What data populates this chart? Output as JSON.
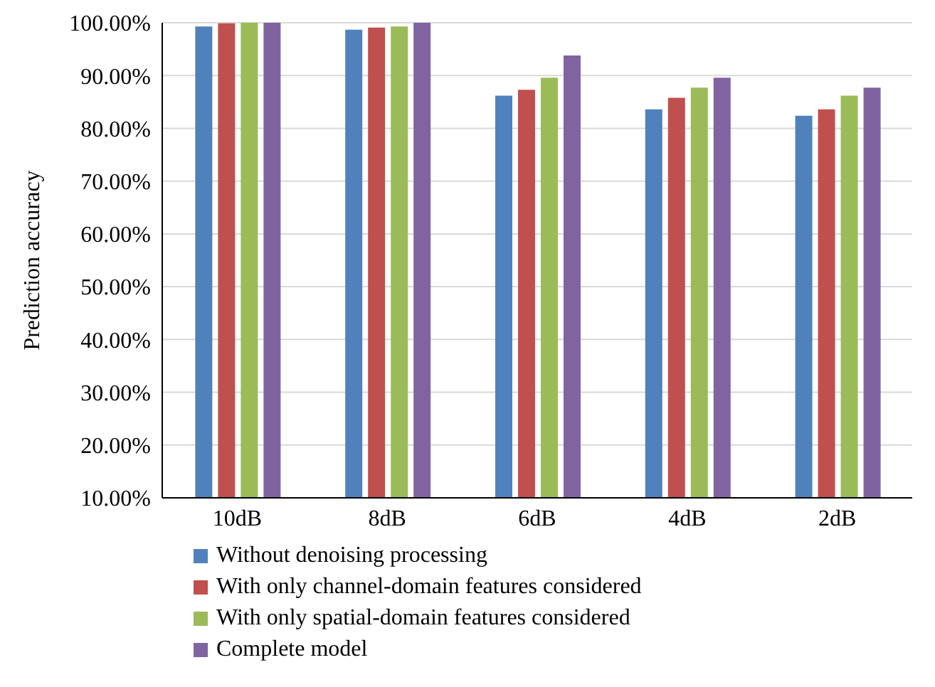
{
  "chart_data": {
    "type": "bar",
    "ylabel": "Prediction accuracy",
    "categories": [
      "10dB",
      "8dB",
      "6dB",
      "4dB",
      "2dB"
    ],
    "series": [
      {
        "name": "Without denoising processing",
        "color": "#4f81bd",
        "values": [
          99.3,
          98.7,
          86.2,
          83.6,
          82.4
        ]
      },
      {
        "name": "With only channel-domain features considered",
        "color": "#c0504d",
        "values": [
          99.9,
          99.1,
          87.3,
          85.8,
          83.6
        ]
      },
      {
        "name": "With only spatial-domain features considered",
        "color": "#9bbb59",
        "values": [
          100,
          99.3,
          89.6,
          87.7,
          86.2
        ]
      },
      {
        "name": "Complete model",
        "color": "#8064a2",
        "values": [
          100,
          100,
          93.8,
          89.6,
          87.7
        ]
      }
    ],
    "ylim": [
      10,
      100
    ],
    "yticks": [
      {
        "value": 10,
        "label": "10.00%"
      },
      {
        "value": 20,
        "label": "20.00%"
      },
      {
        "value": 30,
        "label": "30.00%"
      },
      {
        "value": 40,
        "label": "40.00%"
      },
      {
        "value": 50,
        "label": "50.00%"
      },
      {
        "value": 60,
        "label": "60.00%"
      },
      {
        "value": 70,
        "label": "70.00%"
      },
      {
        "value": 80,
        "label": "80.00%"
      },
      {
        "value": 90,
        "label": "90.00%"
      },
      {
        "value": 100,
        "label": "100.00%"
      }
    ],
    "grid": "y",
    "legend": "bottom"
  }
}
